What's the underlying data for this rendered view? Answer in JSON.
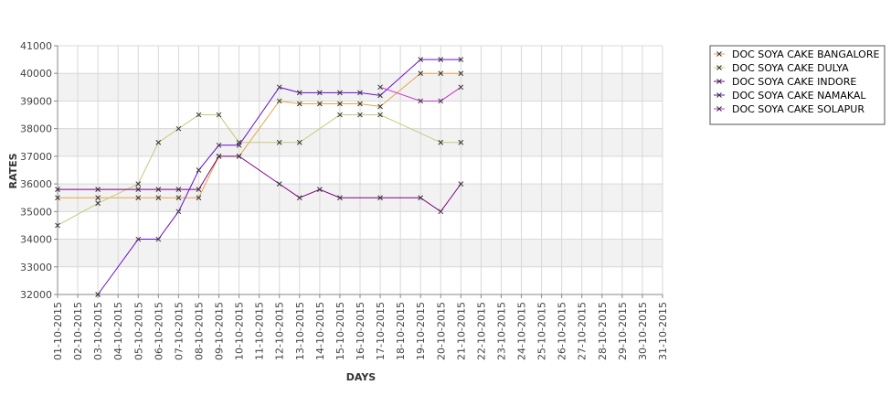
{
  "chart_data": {
    "type": "line",
    "title": "",
    "xlabel": "DAYS",
    "ylabel": "RATES",
    "ylim": [
      32000,
      41000
    ],
    "yticks": [
      32000,
      33000,
      34000,
      35000,
      36000,
      37000,
      38000,
      39000,
      40000,
      41000
    ],
    "categories": [
      "01-10-2015",
      "02-10-2015",
      "03-10-2015",
      "04-10-2015",
      "05-10-2015",
      "06-10-2015",
      "07-10-2015",
      "08-10-2015",
      "09-10-2015",
      "10-10-2015",
      "11-10-2015",
      "12-10-2015",
      "13-10-2015",
      "14-10-2015",
      "15-10-2015",
      "16-10-2015",
      "17-10-2015",
      "18-10-2015",
      "19-10-2015",
      "20-10-2015",
      "21-10-2015",
      "22-10-2015",
      "23-10-2015",
      "24-10-2015",
      "25-10-2015",
      "26-10-2015",
      "27-10-2015",
      "28-10-2015",
      "29-10-2015",
      "30-10-2015",
      "31-10-2015"
    ],
    "grid": true,
    "legend_position": "right",
    "series": [
      {
        "name": "DOC SOYA CAKE BANGALORE",
        "color": "#e8a34a",
        "points": [
          [
            0,
            35500
          ],
          [
            2,
            35500
          ],
          [
            4,
            35500
          ],
          [
            5,
            35500
          ],
          [
            6,
            35500
          ],
          [
            7,
            35500
          ],
          [
            8,
            37000
          ],
          [
            9,
            37000
          ],
          [
            11,
            39000
          ],
          [
            12,
            38900
          ],
          [
            13,
            38900
          ],
          [
            14,
            38900
          ],
          [
            15,
            38900
          ],
          [
            16,
            38800
          ],
          [
            18,
            40000
          ],
          [
            19,
            40000
          ],
          [
            20,
            40000
          ]
        ]
      },
      {
        "name": "DOC SOYA CAKE DULYA",
        "color": "#c8c87a",
        "points": [
          [
            0,
            34500
          ],
          [
            2,
            35300
          ],
          [
            4,
            36000
          ],
          [
            5,
            37500
          ],
          [
            6,
            38000
          ],
          [
            7,
            38500
          ],
          [
            8,
            38500
          ],
          [
            9,
            37500
          ],
          [
            11,
            37500
          ],
          [
            12,
            37500
          ],
          [
            14,
            38500
          ],
          [
            15,
            38500
          ],
          [
            16,
            38500
          ],
          [
            19,
            37500
          ],
          [
            20,
            37500
          ]
        ]
      },
      {
        "name": "DOC SOYA CAKE INDORE",
        "color": "#800080",
        "points": [
          [
            0,
            35800
          ],
          [
            2,
            35800
          ],
          [
            4,
            35800
          ],
          [
            5,
            35800
          ],
          [
            6,
            35800
          ],
          [
            7,
            35800
          ],
          [
            8,
            37000
          ],
          [
            9,
            37000
          ],
          [
            11,
            36000
          ],
          [
            12,
            35500
          ],
          [
            13,
            35800
          ],
          [
            14,
            35500
          ],
          [
            16,
            35500
          ],
          [
            18,
            35500
          ],
          [
            19,
            35000
          ],
          [
            20,
            36000
          ]
        ]
      },
      {
        "name": "DOC SOYA CAKE NAMAKAL",
        "color": "#6a0dcc",
        "points": [
          [
            2,
            32000
          ],
          [
            4,
            34000
          ],
          [
            5,
            34000
          ],
          [
            6,
            35000
          ],
          [
            7,
            36500
          ],
          [
            8,
            37400
          ],
          [
            9,
            37400
          ],
          [
            11,
            39500
          ],
          [
            12,
            39300
          ],
          [
            13,
            39300
          ],
          [
            14,
            39300
          ],
          [
            15,
            39300
          ],
          [
            16,
            39200
          ],
          [
            18,
            40500
          ],
          [
            19,
            40500
          ],
          [
            20,
            40500
          ]
        ]
      },
      {
        "name": "DOC SOYA CAKE SOLAPUR",
        "color": "#cc33cc",
        "points": [
          [
            16,
            39500
          ],
          [
            18,
            39000
          ],
          [
            19,
            39000
          ],
          [
            20,
            39500
          ]
        ]
      }
    ],
    "legend": {
      "border_color": "#555555"
    },
    "colors": {
      "band": "#f2f2f2",
      "grid": "#d8d8d8",
      "axis": "#888888",
      "marker": "#333333"
    }
  }
}
